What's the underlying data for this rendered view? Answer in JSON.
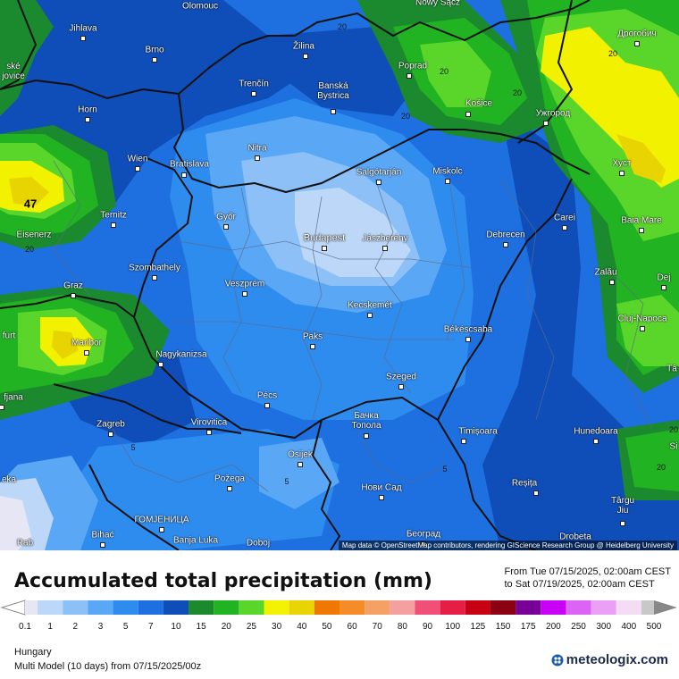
{
  "title": "Accumulated total precipitation (mm)",
  "range_line1": "From Tue 07/15/2025, 02:00am CEST",
  "range_line2": "to Sat 07/19/2025, 02:00am CEST",
  "region": "Hungary",
  "model_line": "Multi Model (10 days) from 07/15/2025/00z",
  "brand": "meteologix.com",
  "attribution": "Map data © OpenStreetMap contributors, rendering GIScience Research Group @ Heidelberg University",
  "max_value": "47",
  "legend": [
    {
      "label": "0.1",
      "color": "#e6e6f5"
    },
    {
      "label": "1",
      "color": "#bcd7f7"
    },
    {
      "label": "2",
      "color": "#8cc0f7"
    },
    {
      "label": "3",
      "color": "#5aa8f5"
    },
    {
      "label": "5",
      "color": "#2f8cef"
    },
    {
      "label": "7",
      "color": "#1e6fe0"
    },
    {
      "label": "10",
      "color": "#0f4eb8"
    },
    {
      "label": "15",
      "color": "#1b8a2e"
    },
    {
      "label": "20",
      "color": "#22b323"
    },
    {
      "label": "25",
      "color": "#5ad62a"
    },
    {
      "label": "30",
      "color": "#f2f200"
    },
    {
      "label": "40",
      "color": "#e8d400"
    },
    {
      "label": "50",
      "color": "#f07800"
    },
    {
      "label": "60",
      "color": "#f58c28"
    },
    {
      "label": "70",
      "color": "#f5a064"
    },
    {
      "label": "80",
      "color": "#f5a0a0"
    },
    {
      "label": "90",
      "color": "#f05078"
    },
    {
      "label": "100",
      "color": "#e61e46"
    },
    {
      "label": "125",
      "color": "#c80014"
    },
    {
      "label": "150",
      "color": "#8c0014"
    },
    {
      "label": "175",
      "color": "#780096"
    },
    {
      "label": "200",
      "color": "#c800f5"
    },
    {
      "label": "250",
      "color": "#dc64f5"
    },
    {
      "label": "300",
      "color": "#eba0f5"
    },
    {
      "label": "400",
      "color": "#f5dcf5"
    },
    {
      "label": "500",
      "color": "#c8c8c8"
    }
  ],
  "cities": [
    {
      "name": "Olomouc",
      "id": "olomouc"
    },
    {
      "name": "Jihlava",
      "id": "jihlava"
    },
    {
      "name": "Brno",
      "id": "brno"
    },
    {
      "name": "Žilina",
      "id": "zilina"
    },
    {
      "name": "Nowy Sącz",
      "id": "nowy-sacz"
    },
    {
      "name": "Дрогобич",
      "id": "drohobych"
    },
    {
      "name": "Poprad",
      "id": "poprad"
    },
    {
      "name": "Trenčín",
      "id": "trencin"
    },
    {
      "name": "Banská Bystrica",
      "id": "banska-bystrica"
    },
    {
      "name": "Košice",
      "id": "kosice"
    },
    {
      "name": "Ужгород",
      "id": "uzhhorod"
    },
    {
      "name": "Horn",
      "id": "horn"
    },
    {
      "name": "Nitra",
      "id": "nitra"
    },
    {
      "name": "Wien",
      "id": "wien"
    },
    {
      "name": "Bratislava",
      "id": "bratislava"
    },
    {
      "name": "Salgótarján",
      "id": "salgotarjan"
    },
    {
      "name": "Miskolc",
      "id": "miskolc"
    },
    {
      "name": "Хуст",
      "id": "khust"
    },
    {
      "name": "Ternitz",
      "id": "ternitz"
    },
    {
      "name": "Győr",
      "id": "gyor"
    },
    {
      "name": "Budapest",
      "id": "budapest"
    },
    {
      "name": "Jászberény",
      "id": "jaszbereny"
    },
    {
      "name": "Debrecen",
      "id": "debrecen"
    },
    {
      "name": "Carei",
      "id": "carei"
    },
    {
      "name": "Baia Mare",
      "id": "baia-mare"
    },
    {
      "name": "Eisenerz",
      "id": "eisenerz"
    },
    {
      "name": "Szombathely",
      "id": "szombathely"
    },
    {
      "name": "Zalău",
      "id": "zalau"
    },
    {
      "name": "Graz",
      "id": "graz"
    },
    {
      "name": "Veszprém",
      "id": "veszprem"
    },
    {
      "name": "Kecskemét",
      "id": "kecskemet"
    },
    {
      "name": "Dej",
      "id": "dej"
    },
    {
      "name": "Cluj-Napoca",
      "id": "cluj-napoca"
    },
    {
      "name": "Maribor",
      "id": "maribor"
    },
    {
      "name": "Paks",
      "id": "paks"
    },
    {
      "name": "Békéscsaba",
      "id": "bekescsaba"
    },
    {
      "name": "Nagykanizsa",
      "id": "nagykanizsa"
    },
    {
      "name": "Szeged",
      "id": "szeged"
    },
    {
      "name": "Pécs",
      "id": "pecs"
    },
    {
      "name": "Бачка Топола",
      "id": "backa-topola"
    },
    {
      "name": "Virovitica",
      "id": "virovitica"
    },
    {
      "name": "Zagreb",
      "id": "zagreb"
    },
    {
      "name": "Timișoara",
      "id": "timisoara"
    },
    {
      "name": "Hunedoara",
      "id": "hunedoara"
    },
    {
      "name": "Osijek",
      "id": "osijek"
    },
    {
      "name": "Požega",
      "id": "pozega"
    },
    {
      "name": "Нови Сад",
      "id": "novi-sad"
    },
    {
      "name": "Reșița",
      "id": "resita"
    },
    {
      "name": "Târgu Jiu",
      "id": "targu-jiu"
    },
    {
      "name": "ГОМЈЕНИЦА",
      "id": "gomjenica"
    },
    {
      "name": "Bihać",
      "id": "bihac"
    },
    {
      "name": "Banja Luka",
      "id": "banja-luka"
    },
    {
      "name": "Doboj",
      "id": "doboj"
    },
    {
      "name": "Београд",
      "id": "beograd"
    },
    {
      "name": "Drobeta",
      "id": "drobeta"
    },
    {
      "name": "fjana",
      "id": "ljubljana"
    },
    {
      "name": "furt",
      "id": "furt"
    },
    {
      "name": "eka",
      "id": "rijeka"
    },
    {
      "name": "Rab",
      "id": "rab"
    },
    {
      "name": "ské jovice",
      "id": "budejovice"
    },
    {
      "name": "Tâ",
      "id": "ta"
    },
    {
      "name": "Si",
      "id": "si"
    }
  ],
  "contours": [
    "20",
    "20",
    "20",
    "20",
    "20",
    "20",
    "20",
    "5",
    "5",
    "5",
    "20"
  ]
}
